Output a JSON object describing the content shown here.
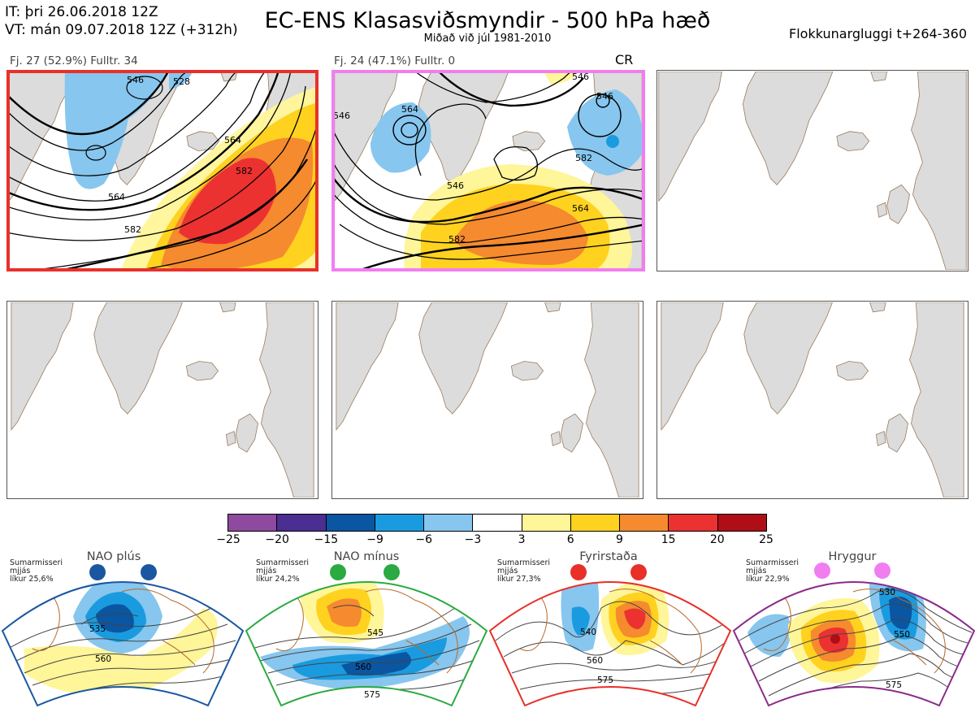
{
  "header": {
    "it_line": "IT: þri 26.06.2018 12Z",
    "vt_line": "VT: mán 09.07.2018 12Z  (+312h)",
    "title": "EC-ENS Klasasviðsmyndir - 500 hPa hæð",
    "subtitle": "Miðað við júl 1981-2010",
    "window": "Flokkunargluggi t+264-360"
  },
  "clusters": [
    {
      "label": "Fj. 27 (52.9%)  Fulltr. 34",
      "border_color": "#e8302a",
      "contours": [
        "564",
        "582",
        "564",
        "582",
        "528",
        "546"
      ]
    },
    {
      "label": "Fj. 24 (47.1%)  Fulltr. 0",
      "border_color": "#f07ef0",
      "cr": "CR",
      "contours": [
        "546",
        "564",
        "582",
        "582",
        "564",
        "546",
        "546",
        "546"
      ]
    }
  ],
  "colorbar": {
    "colors": [
      "#8e4a9e",
      "#4a2e91",
      "#0a56a2",
      "#1a9be0",
      "#87c6ee",
      "#ffffff",
      "#fff599",
      "#ffd21f",
      "#f58a2f",
      "#ec3131",
      "#b00e16"
    ],
    "labels": [
      "−25",
      "−20",
      "−15",
      "−9",
      "−6",
      "−3",
      "3",
      "6",
      "9",
      "15",
      "20",
      "25"
    ]
  },
  "regimes": [
    {
      "title": "NAO plús",
      "note": [
        "Sumarmisseri",
        "mjjás",
        "líkur 25,6%"
      ],
      "border": "#1a57a0",
      "dot": "#1a57a0",
      "contours": [
        "535",
        "560"
      ]
    },
    {
      "title": "NAO mínus",
      "note": [
        "Sumarmisseri",
        "mjjás",
        "líkur 24,2%"
      ],
      "border": "#2aaa40",
      "dot": "#2aaa40",
      "contours": [
        "545",
        "560",
        "575"
      ]
    },
    {
      "title": "Fyrirstaða",
      "note": [
        "Sumarmisseri",
        "mjjás",
        "líkur 27,3%"
      ],
      "border": "#e83028",
      "dot": "#e83028",
      "contours": [
        "540",
        "560",
        "575"
      ]
    },
    {
      "title": "Hryggur",
      "note": [
        "Sumarmisseri",
        "mjjás",
        "líkur 22,9%"
      ],
      "border": "#8a2a8a",
      "dot": "#f07ef0",
      "contours": [
        "530",
        "550",
        "575"
      ]
    }
  ]
}
